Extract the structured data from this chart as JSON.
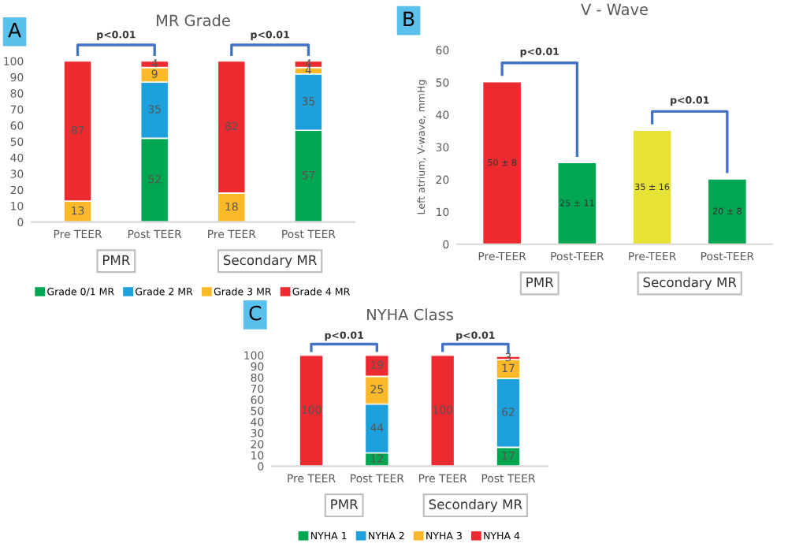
{
  "chart_data": [
    {
      "type": "bar",
      "title": "MR Grade",
      "stacked": true,
      "categories": [
        "Pre TEER",
        "Post TEER",
        "Pre TEER",
        "Post TEER"
      ],
      "series": [
        {
          "name": "Grade 0/1 MR",
          "color": "#00a651",
          "values": [
            0,
            52,
            0,
            57
          ],
          "value_labels": [
            null,
            "52",
            null,
            "57"
          ]
        },
        {
          "name": "Grade 2 MR",
          "color": "#1ea0dc",
          "values": [
            0,
            35,
            0,
            35
          ],
          "value_labels": [
            null,
            "35",
            null,
            "35"
          ]
        },
        {
          "name": "Grade 3 MR",
          "color": "#fbb829",
          "values": [
            13,
            9,
            18,
            4
          ],
          "value_labels": [
            "13",
            "9",
            "18",
            "4"
          ]
        },
        {
          "name": "Grade 4 MR",
          "color": "#ec2a2f",
          "values": [
            87,
            4,
            82,
            4
          ],
          "value_labels": [
            "87",
            "4",
            "82",
            "4"
          ]
        }
      ],
      "ylim": [
        0,
        100
      ],
      "yticks": [
        0,
        10,
        20,
        30,
        40,
        50,
        60,
        70,
        80,
        90,
        100
      ],
      "legend": "bottom",
      "annotations": [
        "p<0.01",
        "p<0.01",
        "PMR",
        "Secondary MR",
        "A"
      ]
    },
    {
      "type": "bar",
      "title": "V - Wave",
      "ylabel": "Left atrium, V-wave, mmHg",
      "categories": [
        "Pre-TEER",
        "Post-TEER",
        "Pre-TEER",
        "Post-TEER"
      ],
      "values": [
        50,
        25,
        35,
        20
      ],
      "colors": [
        "#ec2a2f",
        "#00a651",
        "#e6e236",
        "#00a651"
      ],
      "value_labels": [
        "50 ± 8",
        "25 ± 11",
        "35 ± 16",
        "20 ± 8"
      ],
      "ylim": [
        0,
        60
      ],
      "yticks": [
        0,
        10,
        20,
        30,
        40,
        50,
        60
      ],
      "annotations": [
        "p<0.01",
        "p<0.01",
        "PMR",
        "Secondary MR",
        "B"
      ]
    },
    {
      "type": "bar",
      "title": "NYHA Class",
      "stacked": true,
      "categories": [
        "Pre TEER",
        "Post TEER",
        "Pre TEER",
        "Post TEER"
      ],
      "series": [
        {
          "name": "NYHA 1",
          "color": "#00a651",
          "values": [
            0,
            12,
            0,
            17
          ],
          "value_labels": [
            null,
            "12",
            null,
            "17"
          ]
        },
        {
          "name": "NYHA 2",
          "color": "#1ea0dc",
          "values": [
            0,
            44,
            0,
            62
          ],
          "value_labels": [
            null,
            "44",
            null,
            "62"
          ]
        },
        {
          "name": "NYHA 3",
          "color": "#fbb829",
          "values": [
            0,
            25,
            0,
            17
          ],
          "value_labels": [
            null,
            "25",
            null,
            "17"
          ]
        },
        {
          "name": "NYHA 4",
          "color": "#ec2a2f",
          "values": [
            100,
            19,
            100,
            3
          ],
          "value_labels": [
            "100",
            "19",
            "100",
            "3"
          ]
        }
      ],
      "ylim": [
        0,
        100
      ],
      "yticks": [
        0,
        10,
        20,
        30,
        40,
        50,
        60,
        70,
        80,
        90,
        100
      ],
      "legend": "bottom",
      "annotations": [
        "p<0.01",
        "p<0.01",
        "PMR",
        "Secondary MR",
        "C"
      ]
    }
  ]
}
